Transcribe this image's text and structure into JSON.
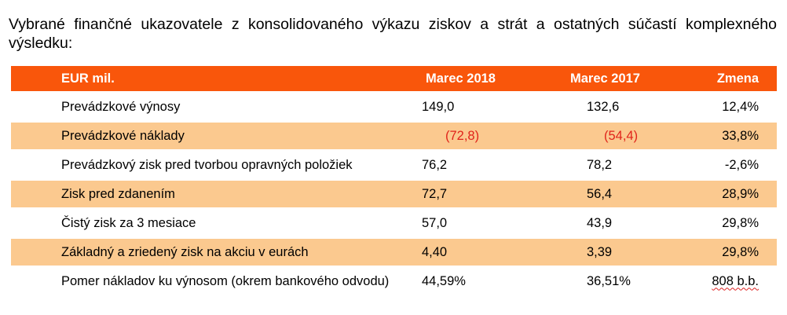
{
  "title": "Vybrané finančné ukazovatele z konsolidovaného výkazu ziskov a strát a ostatných súčastí komplexného výsledku:",
  "table": {
    "headers": [
      "EUR mil.",
      "Marec 2018",
      "Marec 2017",
      "Zmena"
    ],
    "rows": [
      [
        "Prevádzkové výnosy",
        "149,0",
        "132,6",
        "12,4%"
      ],
      [
        "Prevádzkové náklady",
        "(72,8)",
        "(54,4)",
        "33,8%"
      ],
      [
        "Prevádzkový zisk pred tvorbou opravných položiek",
        "76,2",
        "78,2",
        "-2,6%"
      ],
      [
        "Zisk pred zdanením",
        "72,7",
        "56,4",
        "28,9%"
      ],
      [
        "Čistý zisk za 3 mesiace",
        "57,0",
        "43,9",
        "29,8%"
      ],
      [
        "Základný a zriedený zisk na akciu v eurách",
        "4,40",
        "3,39",
        "29,8%"
      ],
      [
        "Pomer nákladov ku výnosom (okrem bankového odvodu)",
        "44,59%",
        "36,51%",
        "808 b.b."
      ]
    ]
  },
  "colors": {
    "header_bg": "#f9560b",
    "shaded_bg": "#fbc98f",
    "negative_text": "#e0241b"
  }
}
